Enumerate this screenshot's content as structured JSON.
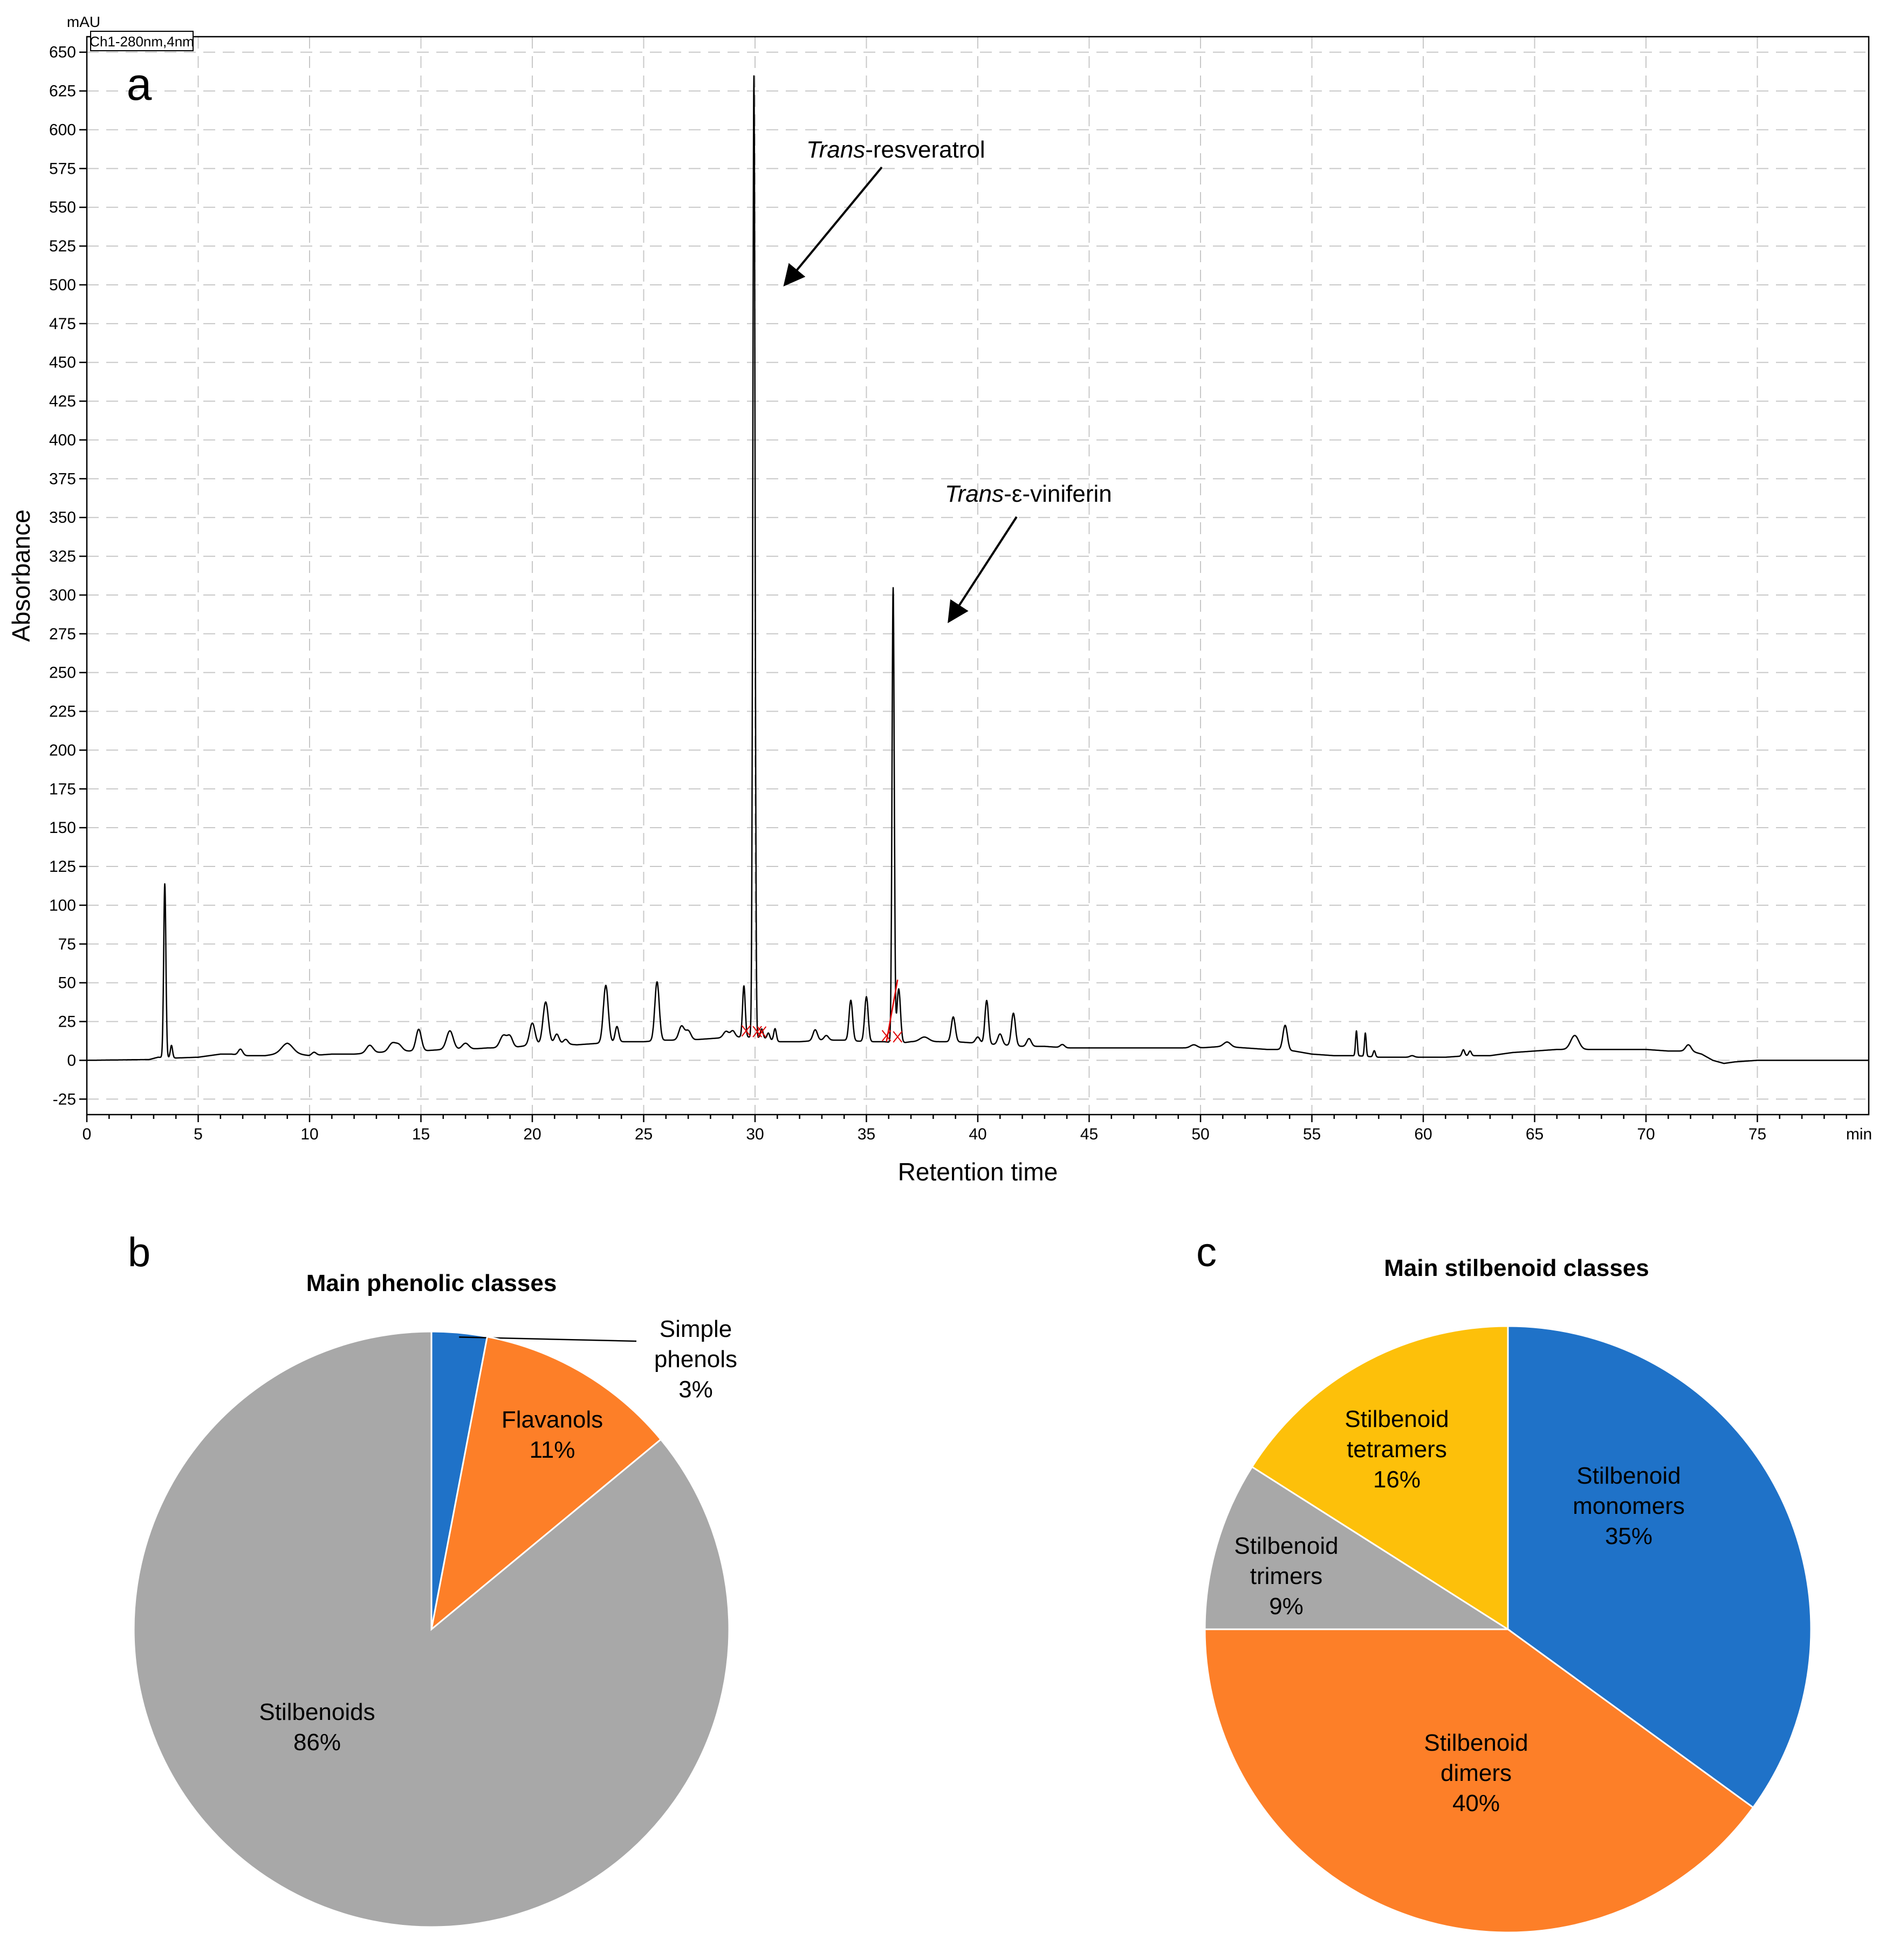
{
  "chart_data": [
    {
      "type": "line",
      "panel_letter": "a",
      "unit_label": "mAU",
      "channel_label": "Ch1-280nm,4nm",
      "xlabel": "Retention time",
      "ylabel": "Absorbance",
      "x_unit_label": "min",
      "xlim": [
        0,
        80
      ],
      "ylim": [
        -35,
        660
      ],
      "xticks": [
        0,
        5,
        10,
        15,
        20,
        25,
        30,
        35,
        40,
        45,
        50,
        55,
        60,
        65,
        70,
        75
      ],
      "yticks": [
        -25,
        0,
        25,
        50,
        75,
        100,
        125,
        150,
        175,
        200,
        225,
        250,
        275,
        300,
        325,
        350,
        375,
        400,
        425,
        450,
        475,
        500,
        525,
        550,
        575,
        600,
        625,
        650
      ],
      "grid": true,
      "baseline": [
        [
          0,
          0
        ],
        [
          2.8,
          0.5
        ],
        [
          3.2,
          2
        ],
        [
          4,
          1.5
        ],
        [
          5,
          2
        ],
        [
          6,
          4
        ],
        [
          6.5,
          4
        ],
        [
          7,
          3
        ],
        [
          8,
          3
        ],
        [
          9,
          5
        ],
        [
          10,
          3
        ],
        [
          11,
          4
        ],
        [
          12,
          4
        ],
        [
          13,
          5
        ],
        [
          14,
          6
        ],
        [
          15,
          6
        ],
        [
          16,
          7
        ],
        [
          17,
          7
        ],
        [
          18,
          8
        ],
        [
          19,
          8
        ],
        [
          20,
          10
        ],
        [
          21,
          11
        ],
        [
          22,
          10
        ],
        [
          23,
          11
        ],
        [
          24,
          12
        ],
        [
          25,
          12
        ],
        [
          26,
          13
        ],
        [
          27,
          13
        ],
        [
          28,
          14
        ],
        [
          29,
          15
        ],
        [
          29.7,
          15
        ],
        [
          30.5,
          14
        ],
        [
          31,
          12
        ],
        [
          32,
          12
        ],
        [
          33,
          13
        ],
        [
          34,
          13
        ],
        [
          35,
          12
        ],
        [
          35.8,
          12
        ],
        [
          36.5,
          11
        ],
        [
          37,
          12
        ],
        [
          38,
          12
        ],
        [
          39,
          12
        ],
        [
          40,
          11
        ],
        [
          41,
          10
        ],
        [
          42,
          9
        ],
        [
          43,
          9
        ],
        [
          44,
          8
        ],
        [
          45,
          8
        ],
        [
          46,
          8
        ],
        [
          47,
          8
        ],
        [
          48,
          8
        ],
        [
          49,
          8
        ],
        [
          50,
          8
        ],
        [
          51,
          9
        ],
        [
          52,
          8
        ],
        [
          53,
          7
        ],
        [
          53.5,
          7
        ],
        [
          54.2,
          6
        ],
        [
          55,
          4
        ],
        [
          56,
          3
        ],
        [
          57,
          3
        ],
        [
          58,
          2
        ],
        [
          59,
          2
        ],
        [
          60,
          2
        ],
        [
          61,
          2
        ],
        [
          62,
          3
        ],
        [
          63,
          3
        ],
        [
          64,
          5
        ],
        [
          65,
          6
        ],
        [
          66,
          7
        ],
        [
          67,
          7
        ],
        [
          68,
          7
        ],
        [
          69,
          7
        ],
        [
          70,
          7
        ],
        [
          71,
          6
        ],
        [
          72,
          6
        ],
        [
          72.5,
          4
        ],
        [
          73,
          0
        ],
        [
          73.5,
          -2
        ],
        [
          74,
          -1
        ],
        [
          75,
          0
        ],
        [
          80,
          0
        ]
      ],
      "peaks": [
        [
          3.5,
          112,
          0.05
        ],
        [
          3.8,
          8,
          0.05
        ],
        [
          6.9,
          4,
          0.1
        ],
        [
          9.0,
          6,
          0.25
        ],
        [
          10.2,
          2,
          0.1
        ],
        [
          12.7,
          5,
          0.15
        ],
        [
          13.7,
          5,
          0.15
        ],
        [
          14.0,
          4,
          0.15
        ],
        [
          14.9,
          14,
          0.12
        ],
        [
          16.3,
          12,
          0.15
        ],
        [
          17.0,
          4,
          0.15
        ],
        [
          18.7,
          8,
          0.15
        ],
        [
          19.0,
          7,
          0.12
        ],
        [
          20.0,
          14,
          0.12
        ],
        [
          20.6,
          27,
          0.12
        ],
        [
          21.1,
          6,
          0.1
        ],
        [
          21.5,
          3,
          0.1
        ],
        [
          23.3,
          37,
          0.11
        ],
        [
          23.8,
          10,
          0.08
        ],
        [
          25.6,
          38,
          0.1
        ],
        [
          26.7,
          9,
          0.12
        ],
        [
          27.0,
          6,
          0.12
        ],
        [
          28.7,
          4,
          0.12
        ],
        [
          29.0,
          4,
          0.1
        ],
        [
          29.5,
          33,
          0.06
        ],
        [
          29.95,
          620,
          0.05
        ],
        [
          30.3,
          6,
          0.06
        ],
        [
          30.6,
          4,
          0.06
        ],
        [
          30.9,
          8,
          0.06
        ],
        [
          32.7,
          7,
          0.1
        ],
        [
          33.2,
          3,
          0.1
        ],
        [
          34.3,
          26,
          0.08
        ],
        [
          35.0,
          29,
          0.08
        ],
        [
          36.2,
          293,
          0.05
        ],
        [
          36.45,
          35,
          0.08
        ],
        [
          37.6,
          3,
          0.2
        ],
        [
          38.9,
          16,
          0.09
        ],
        [
          40.0,
          4,
          0.1
        ],
        [
          40.4,
          28,
          0.08
        ],
        [
          41.0,
          7,
          0.1
        ],
        [
          41.6,
          21,
          0.09
        ],
        [
          42.3,
          5,
          0.1
        ],
        [
          43.8,
          2,
          0.1
        ],
        [
          49.7,
          2,
          0.15
        ],
        [
          51.2,
          3,
          0.15
        ],
        [
          53.8,
          16,
          0.1
        ],
        [
          57.0,
          16,
          0.04
        ],
        [
          57.4,
          15,
          0.04
        ],
        [
          57.8,
          4,
          0.05
        ],
        [
          59.5,
          1,
          0.1
        ],
        [
          61.8,
          4,
          0.06
        ],
        [
          62.1,
          3,
          0.06
        ],
        [
          66.8,
          9,
          0.18
        ],
        [
          71.9,
          4,
          0.12
        ]
      ],
      "integration_marks": [
        29.6,
        30.1,
        30.3,
        35.9,
        36.4
      ],
      "annotations": [
        {
          "label_italic": "Trans",
          "label_rest": "-resveratrol",
          "points_to": [
            30.0,
            500
          ]
        },
        {
          "label_italic": "Trans",
          "label_rest": "-ε-viniferin",
          "points_to": [
            36.4,
            283
          ]
        }
      ]
    },
    {
      "type": "pie",
      "panel_letter": "b",
      "title": "Main phenolic classes",
      "start": "12 o'clock, clockwise",
      "slices": [
        {
          "label": "Simple phenols",
          "lines": [
            "Simple",
            "phenols"
          ],
          "pct_label": "3%",
          "value": 3,
          "color": "#1F72C8",
          "label_outside": true
        },
        {
          "label": "Flavanols",
          "lines": [
            "Flavanols"
          ],
          "pct_label": "11%",
          "value": 11,
          "color": "#FD7F28"
        },
        {
          "label": "Stilbenoids",
          "lines": [
            "Stilbenoids"
          ],
          "pct_label": "86%",
          "value": 86,
          "color": "#A8A8A8"
        }
      ]
    },
    {
      "type": "pie",
      "panel_letter": "c",
      "title": "Main stilbenoid classes",
      "start": "12 o'clock, clockwise",
      "slices": [
        {
          "label": "Stilbenoid monomers",
          "lines": [
            "Stilbenoid",
            "monomers"
          ],
          "pct_label": "35%",
          "value": 35,
          "color": "#1F72C8"
        },
        {
          "label": "Stilbenoid dimers",
          "lines": [
            "Stilbenoid",
            "dimers"
          ],
          "pct_label": "40%",
          "value": 40,
          "color": "#FD7F28"
        },
        {
          "label": "Stilbenoid trimers",
          "lines": [
            "Stilbenoid",
            "trimers"
          ],
          "pct_label": "9%",
          "value": 9,
          "color": "#A8A8A8"
        },
        {
          "label": "Stilbenoid tetramers",
          "lines": [
            "Stilbenoid",
            "tetramers"
          ],
          "pct_label": "16%",
          "value": 16,
          "color": "#FDC00A"
        }
      ]
    }
  ]
}
